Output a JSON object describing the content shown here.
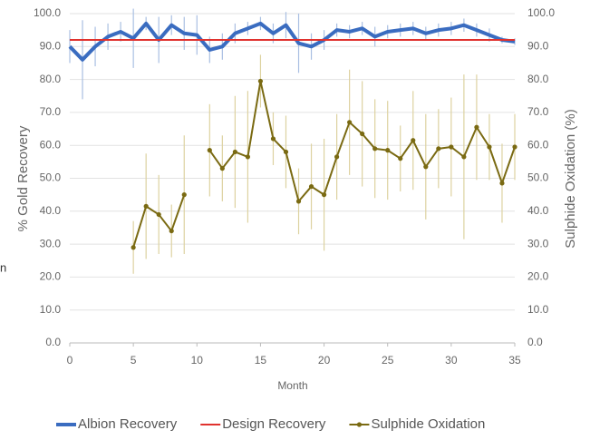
{
  "chart_data": {
    "type": "line",
    "ylabel": "% Gold Recovery",
    "y2label": "Sulphide Oxidation (%)",
    "xlabel": "Month",
    "annotation": "n",
    "xlim": [
      0,
      35
    ],
    "xticks": [
      0,
      5,
      10,
      15,
      20,
      25,
      30,
      35
    ],
    "ylim": [
      0,
      100
    ],
    "yticks": [
      {
        "value": 0,
        "label": "0.0"
      },
      {
        "value": 10,
        "label": "10.0"
      },
      {
        "value": 20,
        "label": "20.0"
      },
      {
        "value": 30,
        "label": "30.0"
      },
      {
        "value": 40,
        "label": "40.0"
      },
      {
        "value": 50,
        "label": "50.0"
      },
      {
        "value": 60,
        "label": "60.0"
      },
      {
        "value": 70,
        "label": "70.0"
      },
      {
        "value": 80,
        "label": "80.0"
      },
      {
        "value": 90,
        "label": "90.0"
      },
      {
        "value": 100,
        "label": "100.0"
      }
    ],
    "y2lim": [
      0,
      100
    ],
    "y2ticks": [
      {
        "value": 0,
        "label": "0.0"
      },
      {
        "value": 10,
        "label": "10.0"
      },
      {
        "value": 20,
        "label": "20.0"
      },
      {
        "value": 30,
        "label": "30.0"
      },
      {
        "value": 40,
        "label": "40.0"
      },
      {
        "value": 50,
        "label": "50.0"
      },
      {
        "value": 60,
        "label": "60.0"
      },
      {
        "value": 70,
        "label": "70.0"
      },
      {
        "value": 80,
        "label": "80.0"
      },
      {
        "value": 90,
        "label": "90.0"
      },
      {
        "value": 100,
        "label": "100.0"
      }
    ],
    "grid": true,
    "legend": "bottom",
    "series": [
      {
        "name": "Albion Recovery",
        "color": "#3a6cc0",
        "error_color": "#a9bfe2",
        "width": 4,
        "markers": false,
        "x": [
          0,
          1,
          2,
          3,
          4,
          5,
          6,
          7,
          8,
          9,
          10,
          11,
          12,
          13,
          14,
          15,
          16,
          17,
          18,
          19,
          20,
          21,
          22,
          23,
          24,
          25,
          26,
          27,
          28,
          29,
          30,
          31,
          32,
          33,
          34,
          35
        ],
        "values": [
          90,
          86,
          90,
          93,
          94.5,
          92.5,
          97,
          92,
          96.5,
          94,
          93.5,
          89,
          90,
          94,
          95.5,
          97,
          94,
          96.5,
          91,
          90,
          92,
          95,
          94.5,
          95.5,
          93,
          94.5,
          95,
          95.5,
          94,
          95,
          95.5,
          96.5,
          95,
          93.5,
          92,
          91.5
        ],
        "errors": [
          5,
          12,
          6,
          4,
          3,
          9,
          2,
          7,
          3,
          5,
          6,
          4,
          4,
          3,
          2,
          2,
          3,
          4,
          9,
          4,
          3,
          2,
          2,
          2,
          3,
          2,
          2,
          2,
          2,
          2,
          2,
          2,
          2,
          2,
          1,
          1
        ]
      },
      {
        "name": "Design Recovery",
        "color": "#e0322e",
        "width": 2,
        "markers": false,
        "x": [
          0,
          35
        ],
        "values": [
          92,
          92
        ]
      },
      {
        "name": "Sulphide Oxidation",
        "color": "#7a6a12",
        "error_color": "#ddd2a0",
        "width": 2,
        "markers": true,
        "axis": "y2",
        "x": [
          0,
          1,
          2,
          3,
          4,
          5,
          6,
          7,
          8,
          9,
          10,
          11,
          12,
          13,
          14,
          15,
          16,
          17,
          18,
          19,
          20,
          21,
          22,
          23,
          24,
          25,
          26,
          27,
          28,
          29,
          30,
          31,
          32,
          33,
          34,
          35
        ],
        "values": [
          null,
          null,
          null,
          null,
          null,
          29,
          41.5,
          39,
          34,
          45,
          null,
          58.5,
          53,
          58,
          56.5,
          79.5,
          62,
          58,
          43,
          47.5,
          45,
          56.5,
          67,
          63.5,
          59,
          58.5,
          56,
          61.5,
          53.5,
          59,
          59.5,
          56.5,
          65.5,
          59.5,
          48.5,
          59.5
        ],
        "errors": [
          null,
          null,
          null,
          null,
          null,
          8,
          16,
          12,
          8,
          18,
          null,
          14,
          10,
          17,
          20,
          8,
          8,
          11,
          10,
          13,
          17,
          13,
          16,
          16,
          15,
          15,
          10,
          15,
          16,
          12,
          15,
          25,
          16,
          10,
          12,
          10
        ]
      }
    ]
  }
}
